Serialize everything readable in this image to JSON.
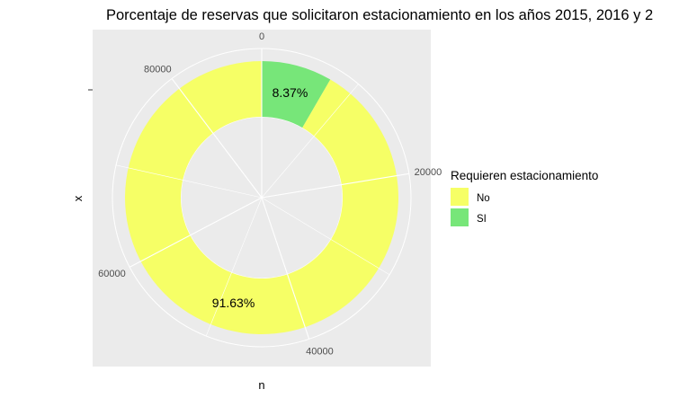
{
  "chart_data": {
    "type": "pie",
    "variant": "donut",
    "title": "Porcentaje de reservas que solicitaron estacionamiento en los años 2015, 2016 y 2",
    "xlabel": "n",
    "ylabel": "x",
    "slices": [
      {
        "name": "SI",
        "value": 7464,
        "label": "8.37%",
        "color": "#77E679"
      },
      {
        "name": "No",
        "value": 81706,
        "label": "91.63%",
        "color": "#F6FF66"
      }
    ],
    "angular_ticks": [
      "0",
      "20000",
      "40000",
      "60000",
      "80000"
    ],
    "angular_tick_values": [
      0,
      20000,
      40000,
      60000,
      80000
    ],
    "angular_range": [
      0,
      89170
    ],
    "legend": {
      "title": "Requieren estacionamiento",
      "position": "right",
      "items": [
        {
          "label": "No",
          "color": "#F6FF66"
        },
        {
          "label": "SI",
          "color": "#77E679"
        }
      ]
    },
    "grid": true,
    "panel_background": "#EBEBEB",
    "grid_color": "#FFFFFF"
  }
}
